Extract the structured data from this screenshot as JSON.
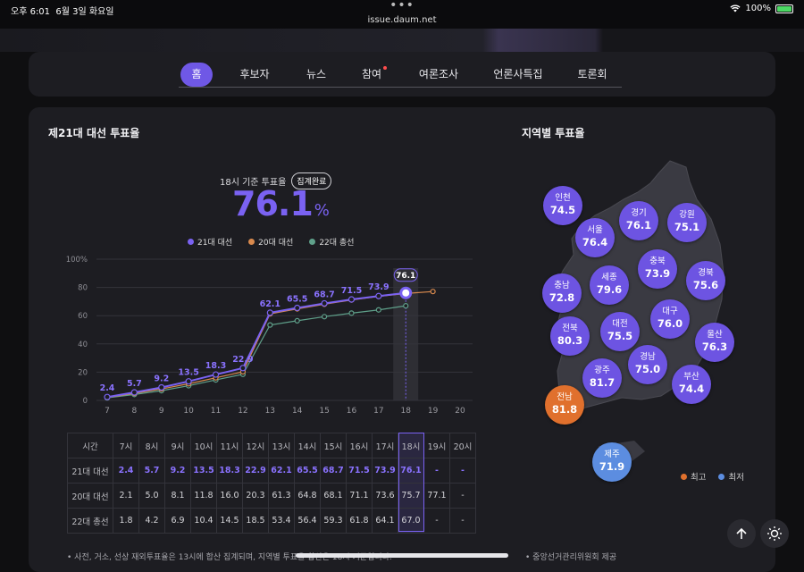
{
  "status_bar": {
    "time": "오후 6:01",
    "date": "6월 3일 화요일",
    "url": "issue.daum.net",
    "battery": "100%"
  },
  "nav": {
    "items": [
      {
        "label": "홈"
      },
      {
        "label": "후보자"
      },
      {
        "label": "뉴스"
      },
      {
        "label": "참여"
      },
      {
        "label": "여론조사"
      },
      {
        "label": "언론사특집"
      },
      {
        "label": "토론회"
      }
    ]
  },
  "turnout": {
    "title": "제21대 대선 투표율",
    "basis": "18시 기준 투표율",
    "badge": "집계완료",
    "value": "76.1",
    "unit": "%",
    "legend": [
      "21대 대선",
      "20대 대선",
      "22대 총선"
    ]
  },
  "chart_data": {
    "type": "line",
    "x": [
      "7",
      "8",
      "9",
      "10",
      "11",
      "12",
      "13",
      "14",
      "15",
      "16",
      "17",
      "18",
      "19",
      "20"
    ],
    "ylim": [
      0,
      100
    ],
    "yticks": [
      "0",
      "20",
      "40",
      "60",
      "80",
      "100%"
    ],
    "highlight_x": "18",
    "series": [
      {
        "name": "21대 대선",
        "color": "#7a62f2",
        "values": [
          2.4,
          5.7,
          9.2,
          13.5,
          18.3,
          22.9,
          62.1,
          65.5,
          68.7,
          71.5,
          73.9,
          76.1,
          null,
          null
        ]
      },
      {
        "name": "20대 대선",
        "color": "#d98a4e",
        "values": [
          2.1,
          5.0,
          8.1,
          11.8,
          16.0,
          20.3,
          61.3,
          64.8,
          68.1,
          71.1,
          73.6,
          75.7,
          77.1,
          null
        ]
      },
      {
        "name": "22대 총선",
        "color": "#5fa08a",
        "values": [
          1.8,
          4.2,
          6.9,
          10.4,
          14.5,
          18.5,
          53.4,
          56.4,
          59.3,
          61.8,
          64.1,
          67.0,
          null,
          null
        ]
      }
    ],
    "data_labels": [
      "2.4",
      "5.7",
      "9.2",
      "13.5",
      "18.3",
      "22.9",
      "62.1",
      "65.5",
      "68.7",
      "71.5",
      "73.9",
      "76.1"
    ]
  },
  "table": {
    "header": [
      "시간",
      "7시",
      "8시",
      "9시",
      "10시",
      "11시",
      "12시",
      "13시",
      "14시",
      "15시",
      "16시",
      "17시",
      "18시",
      "19시",
      "20시"
    ],
    "rows": [
      [
        "21대 대선",
        "2.4",
        "5.7",
        "9.2",
        "13.5",
        "18.3",
        "22.9",
        "62.1",
        "65.5",
        "68.7",
        "71.5",
        "73.9",
        "76.1",
        "-",
        "-"
      ],
      [
        "20대 대선",
        "2.1",
        "5.0",
        "8.1",
        "11.8",
        "16.0",
        "20.3",
        "61.3",
        "64.8",
        "68.1",
        "71.1",
        "73.6",
        "75.7",
        "77.1",
        "-"
      ],
      [
        "22대 총선",
        "1.8",
        "4.2",
        "6.9",
        "10.4",
        "14.5",
        "18.5",
        "53.4",
        "56.4",
        "59.3",
        "61.8",
        "64.1",
        "67.0",
        "-",
        "-"
      ]
    ]
  },
  "footnote_left": "• 사전, 거소, 선상 재외투표율은 13시에 합산 집계되며, 지역별 투표율 합산은 18시 기준입니다.",
  "regional": {
    "title": "지역별 투표율",
    "regions": [
      {
        "name": "인천",
        "value": "74.5"
      },
      {
        "name": "경기",
        "value": "76.1"
      },
      {
        "name": "강원",
        "value": "75.1"
      },
      {
        "name": "서울",
        "value": "76.4"
      },
      {
        "name": "충북",
        "value": "73.9"
      },
      {
        "name": "충남",
        "value": "72.8"
      },
      {
        "name": "세종",
        "value": "79.6"
      },
      {
        "name": "경북",
        "value": "75.6"
      },
      {
        "name": "대구",
        "value": "76.0"
      },
      {
        "name": "전북",
        "value": "80.3"
      },
      {
        "name": "대전",
        "value": "75.5"
      },
      {
        "name": "울산",
        "value": "76.3"
      },
      {
        "name": "경남",
        "value": "75.0"
      },
      {
        "name": "광주",
        "value": "81.7"
      },
      {
        "name": "부산",
        "value": "74.4"
      },
      {
        "name": "전남",
        "value": "81.8"
      },
      {
        "name": "제주",
        "value": "71.9"
      }
    ],
    "legend_high": "최고",
    "legend_low": "최저",
    "colors": {
      "high": "#e0702d",
      "low": "#5c8de0",
      "normal": "#6d54e2"
    },
    "source": "• 중앙선거관리위원회 제공"
  }
}
